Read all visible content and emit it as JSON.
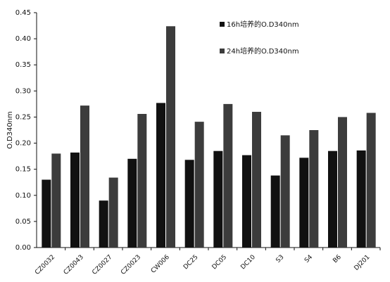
{
  "chart_data": {
    "type": "bar",
    "y_label": "O.D340nm",
    "categories": [
      "CZ0032",
      "CZ0043",
      "CZ0027",
      "CZ0023",
      "CW006",
      "DC25",
      "DC05",
      "DC10",
      "S3",
      "S4",
      "B6",
      "DJ201"
    ],
    "series": [
      {
        "name": "16h培养的O.D340nm",
        "color": "#111111",
        "values": [
          0.13,
          0.182,
          0.09,
          0.17,
          0.277,
          0.168,
          0.185,
          0.177,
          0.138,
          0.172,
          0.185,
          0.186
        ]
      },
      {
        "name": "24h培养的O.D340nm",
        "color": "#3c3c3c",
        "values": [
          0.18,
          0.272,
          0.134,
          0.256,
          0.424,
          0.241,
          0.275,
          0.26,
          0.215,
          0.225,
          0.25,
          0.258
        ]
      }
    ],
    "ylim": [
      0,
      0.45
    ],
    "yticks": [
      {
        "value": 0,
        "label": "0.00"
      },
      0.05,
      {
        "value": 0.1,
        "label": "0.10"
      },
      0.15,
      {
        "value": 0.2,
        "label": "0.20"
      },
      0.25,
      {
        "value": 0.3,
        "label": "0.30"
      },
      0.35,
      {
        "value": 0.4,
        "label": "0.40"
      },
      0.45
    ],
    "legend": "top-right"
  }
}
